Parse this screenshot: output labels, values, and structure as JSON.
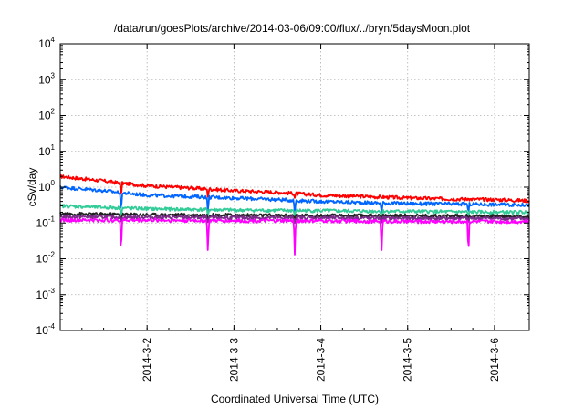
{
  "chart_data": {
    "type": "line",
    "title": "/data/run/goesPlots/archive/2014-03-06/09:00/flux/../bryn/5daysMoon.plot",
    "xlabel": "Coordinated Universal Time (UTC)",
    "ylabel": "cSv/day",
    "yscale": "log",
    "ylim": [
      0.0001,
      10000
    ],
    "xlim": [
      0,
      5.4
    ],
    "grid": true,
    "x_ticks": [
      {
        "x": 1,
        "label": "2014-3-2"
      },
      {
        "x": 2,
        "label": "2014-3-3"
      },
      {
        "x": 3,
        "label": "2014-3-4"
      },
      {
        "x": 4,
        "label": "2014-3-5"
      },
      {
        "x": 5,
        "label": "2014-3-6"
      }
    ],
    "y_ticks": [
      {
        "value": 0.0001,
        "base": "10",
        "exp": "-4"
      },
      {
        "value": 0.001,
        "base": "10",
        "exp": "-3"
      },
      {
        "value": 0.01,
        "base": "10",
        "exp": "-2"
      },
      {
        "value": 0.1,
        "base": "10",
        "exp": "-1"
      },
      {
        "value": 1,
        "base": "10",
        "exp": "0"
      },
      {
        "value": 10,
        "base": "10",
        "exp": "1"
      },
      {
        "value": 100,
        "base": "10",
        "exp": "2"
      },
      {
        "value": 1000,
        "base": "10",
        "exp": "3"
      },
      {
        "value": 10000,
        "base": "10",
        "exp": "4"
      }
    ],
    "dips": [
      0.7,
      1.7,
      2.7,
      3.7,
      4.7
    ],
    "series": [
      {
        "color": "#ff0000",
        "x": [
          0,
          0.5,
          0.7,
          1,
          1.5,
          2,
          2.5,
          3,
          3.5,
          4,
          4.5,
          5,
          5.4
        ],
        "y": [
          2.0,
          1.5,
          1.3,
          1.1,
          0.95,
          0.8,
          0.72,
          0.6,
          0.55,
          0.5,
          0.47,
          0.45,
          0.42
        ],
        "dip_to": 0.5
      },
      {
        "color": "#0066ff",
        "x": [
          0,
          0.5,
          0.7,
          1,
          1.5,
          2,
          2.5,
          3,
          3.5,
          4,
          4.5,
          5,
          5.4
        ],
        "y": [
          1.0,
          0.8,
          0.7,
          0.6,
          0.55,
          0.5,
          0.45,
          0.4,
          0.37,
          0.35,
          0.34,
          0.33,
          0.32
        ],
        "dip_to": 0.18
      },
      {
        "color": "#33cc99",
        "x": [
          0,
          1,
          2,
          3,
          4,
          5,
          5.4
        ],
        "y": [
          0.3,
          0.25,
          0.23,
          0.22,
          0.21,
          0.2,
          0.2
        ],
        "dip_to": 0.15
      },
      {
        "color": "#222222",
        "x": [
          0,
          1,
          2,
          3,
          4,
          5,
          5.4
        ],
        "y": [
          0.18,
          0.17,
          0.165,
          0.16,
          0.16,
          0.155,
          0.15
        ],
        "dip_to": 0.12
      },
      {
        "color": "#7a2e8a",
        "x": [
          0,
          1,
          2,
          3,
          4,
          5,
          5.4
        ],
        "y": [
          0.15,
          0.145,
          0.14,
          0.14,
          0.135,
          0.135,
          0.13
        ],
        "dip_to": 0.1
      },
      {
        "color": "#ff00ff",
        "x": [
          0,
          1,
          2,
          3,
          4,
          5,
          5.4
        ],
        "y": [
          0.12,
          0.12,
          0.115,
          0.115,
          0.11,
          0.11,
          0.11
        ],
        "dip_to": 0.013
      }
    ]
  }
}
